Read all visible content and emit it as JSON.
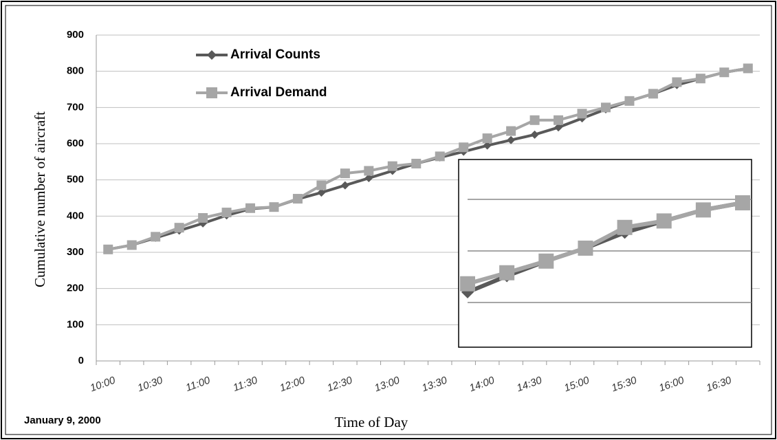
{
  "chart_data": {
    "type": "line",
    "x_label": "Time of Day",
    "y_label": "Cumulative number of aircraft",
    "annotation": "January 9, 2000",
    "categories": [
      "10:00",
      null,
      "10:30",
      null,
      "11:00",
      null,
      "11:30",
      null,
      "12:00",
      null,
      "12:30",
      null,
      "13:00",
      null,
      "13:30",
      null,
      "14:00",
      null,
      "14:30",
      null,
      "15:00",
      null,
      "15:30",
      null,
      "16:00",
      null,
      "16:30",
      null
    ],
    "series": [
      {
        "name": "Arrival Counts",
        "color": "#595959",
        "marker": "diamond",
        "values": [
          308,
          320,
          340,
          360,
          380,
          402,
          420,
          425,
          447,
          465,
          485,
          505,
          525,
          545,
          562,
          578,
          595,
          610,
          625,
          645,
          670,
          695,
          718,
          738,
          762,
          780,
          797,
          808
        ]
      },
      {
        "name": "Arrival Demand",
        "color": "#a6a6a6",
        "marker": "square",
        "values": [
          308,
          320,
          343,
          368,
          395,
          410,
          422,
          425,
          448,
          485,
          518,
          525,
          538,
          545,
          565,
          590,
          615,
          635,
          665,
          665,
          683,
          700,
          718,
          738,
          770,
          780,
          797,
          808
        ]
      }
    ],
    "ylim": [
      0,
      900
    ],
    "yticks": [
      0,
      100,
      200,
      300,
      400,
      500,
      600,
      700,
      800,
      900
    ],
    "grid": true,
    "legend": "top-left"
  }
}
